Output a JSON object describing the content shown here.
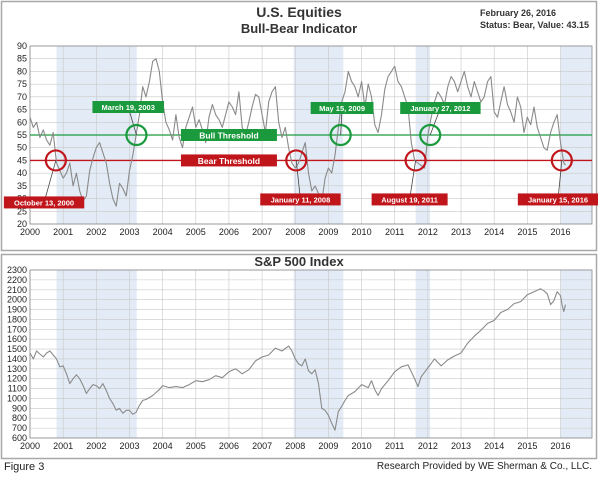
{
  "footer": {
    "figure_label": "Figure 3",
    "credit": "Research Provided by WE Sherman & Co., LLC."
  },
  "colors": {
    "bull": "#1a9a3c",
    "bear": "#c0151a",
    "line": "#8a8a8a",
    "shade": "#e3ecf6",
    "grid": "#c8c8c8"
  },
  "chart_data": [
    {
      "type": "line",
      "title": "U.S. Equities",
      "subtitle": "Bull-Bear Indicator",
      "info": [
        "February 26, 2016",
        "Status: Bear, Value: 43.15"
      ],
      "x_ticks": [
        "2000",
        "2001",
        "2002",
        "2003",
        "2004",
        "2005",
        "2006",
        "2007",
        "2008",
        "2009",
        "2010",
        "2011",
        "2012",
        "2013",
        "2014",
        "2015",
        "2016"
      ],
      "xlim": [
        2000,
        2016.95
      ],
      "ylim": [
        20,
        90
      ],
      "y_ticks": [
        20,
        25,
        30,
        35,
        40,
        45,
        50,
        55,
        60,
        65,
        70,
        75,
        80,
        85,
        90
      ],
      "thresholds": [
        {
          "label": "Bull Threshold",
          "value": 55,
          "kind": "bull"
        },
        {
          "label": "Bear Threshold",
          "value": 45,
          "kind": "bear"
        }
      ],
      "shaded_periods": [
        [
          2000.8,
          2003.22
        ],
        [
          2007.95,
          2009.45
        ],
        [
          2011.63,
          2012.07
        ],
        [
          2016.0,
          2016.95
        ]
      ],
      "signals": [
        {
          "label": "October 13, 2000",
          "x": 2000.78,
          "y": 45,
          "kind": "bear"
        },
        {
          "label": "March 19, 2003",
          "x": 2003.21,
          "y": 55,
          "kind": "bull"
        },
        {
          "label": "January 11, 2008",
          "x": 2008.03,
          "y": 45,
          "kind": "bear"
        },
        {
          "label": "May 15, 2009",
          "x": 2009.37,
          "y": 55,
          "kind": "bull"
        },
        {
          "label": "August 19, 2011",
          "x": 2011.63,
          "y": 45,
          "kind": "bear"
        },
        {
          "label": "January 27, 2012",
          "x": 2012.07,
          "y": 55,
          "kind": "bull"
        },
        {
          "label": "January 15, 2016",
          "x": 2016.04,
          "y": 45,
          "kind": "bear"
        }
      ],
      "series": [
        {
          "x": [
            2000.0,
            2000.1,
            2000.2,
            2000.3,
            2000.4,
            2000.5,
            2000.6,
            2000.7,
            2000.8,
            2000.9,
            2001.0,
            2001.1,
            2001.2,
            2001.3,
            2001.4,
            2001.5,
            2001.6,
            2001.7,
            2001.8,
            2001.9,
            2002.0,
            2002.1,
            2002.2,
            2002.3,
            2002.4,
            2002.5,
            2002.6,
            2002.7,
            2002.8,
            2002.9,
            2003.0,
            2003.1,
            2003.2,
            2003.3,
            2003.4,
            2003.5,
            2003.6,
            2003.7,
            2003.8,
            2003.9,
            2004.0,
            2004.1,
            2004.2,
            2004.3,
            2004.4,
            2004.5,
            2004.6,
            2004.7,
            2004.8,
            2004.9,
            2005.0,
            2005.1,
            2005.2,
            2005.3,
            2005.4,
            2005.5,
            2005.6,
            2005.7,
            2005.8,
            2005.9,
            2006.0,
            2006.1,
            2006.2,
            2006.3,
            2006.4,
            2006.5,
            2006.6,
            2006.7,
            2006.8,
            2006.9,
            2007.0,
            2007.1,
            2007.2,
            2007.3,
            2007.4,
            2007.5,
            2007.6,
            2007.7,
            2007.8,
            2007.9,
            2008.0,
            2008.1,
            2008.2,
            2008.3,
            2008.4,
            2008.5,
            2008.6,
            2008.7,
            2008.8,
            2008.9,
            2009.0,
            2009.1,
            2009.2,
            2009.3,
            2009.4,
            2009.5,
            2009.6,
            2009.7,
            2009.8,
            2009.9,
            2010.0,
            2010.1,
            2010.2,
            2010.3,
            2010.4,
            2010.5,
            2010.6,
            2010.7,
            2010.8,
            2010.9,
            2011.0,
            2011.1,
            2011.2,
            2011.3,
            2011.4,
            2011.5,
            2011.6,
            2011.7,
            2011.8,
            2011.9,
            2012.0,
            2012.1,
            2012.2,
            2012.3,
            2012.4,
            2012.5,
            2012.6,
            2012.7,
            2012.8,
            2012.9,
            2013.0,
            2013.1,
            2013.2,
            2013.3,
            2013.4,
            2013.5,
            2013.6,
            2013.7,
            2013.8,
            2013.9,
            2014.0,
            2014.1,
            2014.2,
            2014.3,
            2014.4,
            2014.5,
            2014.6,
            2014.7,
            2014.8,
            2014.9,
            2015.0,
            2015.1,
            2015.2,
            2015.3,
            2015.4,
            2015.5,
            2015.6,
            2015.7,
            2015.8,
            2015.9,
            2016.0,
            2016.1,
            2016.15
          ],
          "values": [
            62,
            58,
            60,
            54,
            57,
            53,
            51,
            56,
            44,
            41,
            38,
            40,
            44,
            35,
            40,
            33,
            29,
            31,
            41,
            46,
            50,
            52,
            48,
            44,
            36,
            30,
            27,
            36,
            34,
            31,
            41,
            47,
            55,
            63,
            74,
            70,
            76,
            84,
            85,
            80,
            68,
            60,
            57,
            53,
            63,
            54,
            50,
            58,
            62,
            66,
            58,
            61,
            57,
            52,
            62,
            67,
            63,
            61,
            58,
            63,
            68,
            66,
            63,
            72,
            58,
            55,
            60,
            66,
            71,
            70,
            63,
            56,
            68,
            72,
            74,
            60,
            54,
            58,
            50,
            44,
            42,
            44,
            48,
            52,
            40,
            33,
            35,
            32,
            29,
            38,
            42,
            40,
            47,
            58,
            68,
            72,
            80,
            76,
            74,
            70,
            76,
            66,
            75,
            70,
            59,
            56,
            63,
            73,
            78,
            80,
            82,
            76,
            74,
            70,
            66,
            52,
            45,
            44,
            43,
            42,
            55,
            62,
            68,
            72,
            70,
            67,
            74,
            78,
            76,
            72,
            76,
            80,
            74,
            70,
            76,
            72,
            68,
            70,
            76,
            78,
            64,
            62,
            68,
            74,
            67,
            64,
            60,
            70,
            66,
            56,
            62,
            59,
            66,
            58,
            54,
            50,
            49,
            56,
            60,
            63,
            52,
            44,
            43.15
          ]
        }
      ]
    },
    {
      "type": "line",
      "title": "S&P 500 Index",
      "x_ticks": [
        "2000",
        "2001",
        "2002",
        "2003",
        "2004",
        "2005",
        "2006",
        "2007",
        "2008",
        "2009",
        "2010",
        "2011",
        "2012",
        "2013",
        "2014",
        "2015",
        "2016"
      ],
      "xlim": [
        2000,
        2016.95
      ],
      "ylim": [
        600,
        2300
      ],
      "y_ticks": [
        600,
        700,
        800,
        900,
        1000,
        1100,
        1200,
        1300,
        1400,
        1500,
        1600,
        1700,
        1800,
        1900,
        2000,
        2100,
        2200,
        2300
      ],
      "shaded_periods": [
        [
          2000.8,
          2003.22
        ],
        [
          2007.95,
          2009.45
        ],
        [
          2011.63,
          2012.07
        ],
        [
          2016.0,
          2016.95
        ]
      ],
      "series": [
        {
          "x": [
            2000.0,
            2000.1,
            2000.2,
            2000.3,
            2000.4,
            2000.5,
            2000.6,
            2000.7,
            2000.8,
            2000.9,
            2001.0,
            2001.1,
            2001.2,
            2001.3,
            2001.4,
            2001.5,
            2001.6,
            2001.7,
            2001.8,
            2001.9,
            2002.0,
            2002.1,
            2002.2,
            2002.3,
            2002.4,
            2002.5,
            2002.6,
            2002.7,
            2002.8,
            2002.9,
            2003.0,
            2003.1,
            2003.2,
            2003.3,
            2003.4,
            2003.5,
            2003.6,
            2003.7,
            2003.8,
            2003.9,
            2004.0,
            2004.2,
            2004.4,
            2004.6,
            2004.8,
            2005.0,
            2005.2,
            2005.4,
            2005.6,
            2005.8,
            2006.0,
            2006.2,
            2006.4,
            2006.6,
            2006.8,
            2007.0,
            2007.2,
            2007.4,
            2007.6,
            2007.8,
            2007.9,
            2008.0,
            2008.1,
            2008.2,
            2008.3,
            2008.4,
            2008.5,
            2008.6,
            2008.7,
            2008.8,
            2008.9,
            2009.0,
            2009.1,
            2009.2,
            2009.3,
            2009.4,
            2009.5,
            2009.6,
            2009.8,
            2010.0,
            2010.2,
            2010.3,
            2010.4,
            2010.5,
            2010.6,
            2010.8,
            2011.0,
            2011.2,
            2011.4,
            2011.6,
            2011.7,
            2011.8,
            2012.0,
            2012.2,
            2012.4,
            2012.6,
            2012.8,
            2013.0,
            2013.2,
            2013.4,
            2013.6,
            2013.8,
            2014.0,
            2014.2,
            2014.4,
            2014.6,
            2014.8,
            2015.0,
            2015.2,
            2015.4,
            2015.5,
            2015.6,
            2015.7,
            2015.8,
            2015.9,
            2016.0,
            2016.05,
            2016.1,
            2016.15
          ],
          "values": [
            1460,
            1400,
            1480,
            1450,
            1420,
            1460,
            1480,
            1440,
            1400,
            1320,
            1330,
            1250,
            1150,
            1200,
            1240,
            1200,
            1130,
            1050,
            1100,
            1140,
            1130,
            1100,
            1150,
            1080,
            1000,
            950,
            880,
            900,
            850,
            880,
            880,
            840,
            860,
            930,
            980,
            990,
            1010,
            1030,
            1060,
            1090,
            1130,
            1110,
            1120,
            1110,
            1140,
            1180,
            1170,
            1190,
            1230,
            1210,
            1270,
            1300,
            1250,
            1290,
            1380,
            1420,
            1440,
            1510,
            1480,
            1530,
            1480,
            1400,
            1350,
            1330,
            1400,
            1280,
            1250,
            1290,
            1150,
            900,
            880,
            830,
            750,
            680,
            870,
            920,
            980,
            1030,
            1070,
            1140,
            1110,
            1180,
            1090,
            1030,
            1100,
            1180,
            1270,
            1320,
            1340,
            1200,
            1120,
            1220,
            1310,
            1400,
            1330,
            1390,
            1430,
            1460,
            1560,
            1630,
            1690,
            1760,
            1790,
            1870,
            1900,
            1960,
            1980,
            2050,
            2080,
            2110,
            2090,
            2060,
            1950,
            1990,
            2080,
            2040,
            1940,
            1880,
            1950
          ]
        }
      ]
    }
  ]
}
